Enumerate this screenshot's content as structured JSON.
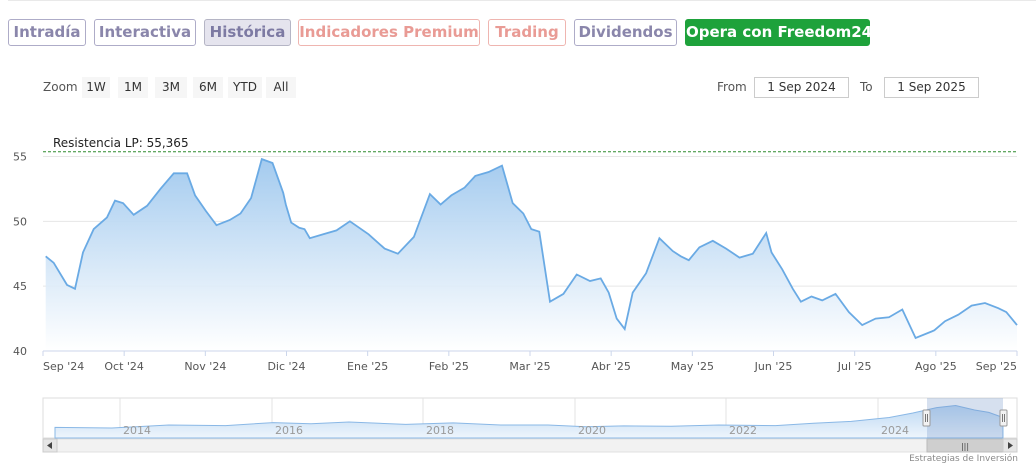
{
  "tabs": [
    {
      "label": "Intradía",
      "style": "purple"
    },
    {
      "label": "Interactiva",
      "style": "purple"
    },
    {
      "label": "Histórica",
      "style": "active"
    },
    {
      "label": "Indicadores Premium",
      "style": "salmon"
    },
    {
      "label": "Trading",
      "style": "salmon"
    },
    {
      "label": "Dividendos",
      "style": "purple"
    },
    {
      "label": "Opera con Freedom24",
      "style": "green"
    }
  ],
  "zoom": {
    "label": "Zoom",
    "buttons": [
      "1W",
      "1M",
      "3M",
      "6M",
      "YTD",
      "All"
    ]
  },
  "range": {
    "from_label": "From",
    "from_value": "1 Sep 2024",
    "to_label": "To",
    "to_value": "1 Sep 2025"
  },
  "chart_data": {
    "type": "area",
    "title": "",
    "xlabel": "",
    "ylabel": "",
    "ylim": [
      40,
      55.5
    ],
    "y_ticks": [
      40,
      45,
      50,
      55
    ],
    "x_tick_labels": [
      "Sep '24",
      "Oct '24",
      "Nov '24",
      "Dic '24",
      "Ene '25",
      "Feb '25",
      "Mar '25",
      "Abr '25",
      "May '25",
      "Jun '25",
      "Jul '25",
      "Ago '25",
      "Sep '25"
    ],
    "x_range": [
      "2024-09-01",
      "2025-09-01"
    ],
    "series": [
      {
        "x": [
          "2024-09-02",
          "2024-09-05",
          "2024-09-10",
          "2024-09-13",
          "2024-09-16",
          "2024-09-20",
          "2024-09-25",
          "2024-09-28",
          "2024-10-01",
          "2024-10-05",
          "2024-10-10",
          "2024-10-15",
          "2024-10-20",
          "2024-10-25",
          "2024-10-28",
          "2024-11-01",
          "2024-11-05",
          "2024-11-10",
          "2024-11-14",
          "2024-11-18",
          "2024-11-22",
          "2024-11-26",
          "2024-11-30",
          "2024-12-01",
          "2024-12-03",
          "2024-12-06",
          "2024-12-08",
          "2024-12-10",
          "2024-12-15",
          "2024-12-20",
          "2024-12-25",
          "2025-01-01",
          "2025-01-07",
          "2025-01-12",
          "2025-01-18",
          "2025-01-24",
          "2025-01-28",
          "2025-02-01",
          "2025-02-06",
          "2025-02-10",
          "2025-02-15",
          "2025-02-20",
          "2025-02-24",
          "2025-02-28",
          "2025-03-03",
          "2025-03-06",
          "2025-03-10",
          "2025-03-15",
          "2025-03-20",
          "2025-03-25",
          "2025-03-29",
          "2025-04-01",
          "2025-04-04",
          "2025-04-07",
          "2025-04-10",
          "2025-04-15",
          "2025-04-20",
          "2025-04-25",
          "2025-04-28",
          "2025-05-01",
          "2025-05-05",
          "2025-05-10",
          "2025-05-15",
          "2025-05-20",
          "2025-05-25",
          "2025-05-30",
          "2025-06-01",
          "2025-06-05",
          "2025-06-09",
          "2025-06-12",
          "2025-06-16",
          "2025-06-20",
          "2025-06-25",
          "2025-06-30",
          "2025-07-05",
          "2025-07-10",
          "2025-07-15",
          "2025-07-20",
          "2025-07-25",
          "2025-07-31",
          "2025-08-01",
          "2025-08-05",
          "2025-08-10",
          "2025-08-15",
          "2025-08-20",
          "2025-08-25",
          "2025-08-28",
          "2025-09-01"
        ],
        "y": [
          47.3,
          46.8,
          45.1,
          44.8,
          47.6,
          49.4,
          50.3,
          51.6,
          51.4,
          50.5,
          51.2,
          52.5,
          53.7,
          53.7,
          52.0,
          50.8,
          49.7,
          50.1,
          50.6,
          51.8,
          54.8,
          54.5,
          52.2,
          51.3,
          49.9,
          49.5,
          49.4,
          48.7,
          49.0,
          49.3,
          50.0,
          49.0,
          47.9,
          47.5,
          48.8,
          52.1,
          51.3,
          52.0,
          52.6,
          53.5,
          53.8,
          54.3,
          51.4,
          50.6,
          49.4,
          49.2,
          43.8,
          44.4,
          45.9,
          45.4,
          45.6,
          44.5,
          42.5,
          41.7,
          44.5,
          46.0,
          48.7,
          47.7,
          47.3,
          47.0,
          48.0,
          48.5,
          47.9,
          47.2,
          47.5,
          49.1,
          47.6,
          46.3,
          44.8,
          43.8,
          44.2,
          43.9,
          44.4,
          43.0,
          42.0,
          42.5,
          42.6,
          43.2,
          41.0,
          41.5,
          41.6,
          42.3,
          42.8,
          43.5,
          43.7,
          43.3,
          43.0,
          42.0
        ]
      }
    ],
    "annotations": [
      {
        "text": "Resistencia LP: 55,365",
        "y": 55.365
      }
    ],
    "navigator": {
      "year_labels": [
        "2014",
        "2016",
        "2018",
        "2020",
        "2022",
        "2024"
      ],
      "scrollbar_grip": "|||"
    },
    "colors": {
      "line": "#6aaae4",
      "fill_top": "#9fc8ee",
      "fill_bottom": "#ffffff",
      "resistance": "#2e8b2e"
    }
  },
  "credit": "Estrategias de Inversión"
}
